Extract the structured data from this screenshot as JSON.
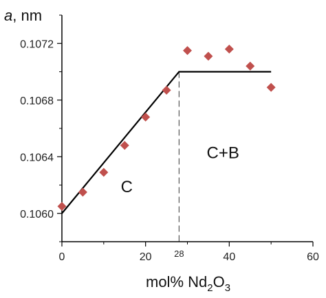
{
  "chart_data": {
    "type": "scatter",
    "title": "",
    "ylabel_var": "a",
    "ylabel_unit": ", nm",
    "xlabel_parts": [
      "mol% Nd",
      "2",
      "O",
      "3"
    ],
    "xlim": [
      0,
      60
    ],
    "ylim": [
      0.1058,
      0.1074
    ],
    "x_ticks": [
      0,
      20,
      40,
      60
    ],
    "x_tick_labels": [
      "0",
      "20",
      "40",
      "60"
    ],
    "y_ticks": [
      0.106,
      0.1064,
      0.1068,
      0.1072
    ],
    "y_tick_labels": [
      "0.1060",
      "0.1064",
      "0.1068",
      "0.1072"
    ],
    "grid": false,
    "marker_color": "#c0504d",
    "line_color": "#000000",
    "series": [
      {
        "x": [
          0,
          5,
          10,
          15,
          20,
          25,
          30,
          35,
          40,
          45,
          50
        ],
        "y": [
          0.10605,
          0.10615,
          0.10629,
          0.10648,
          0.10668,
          0.10687,
          0.10715,
          0.10711,
          0.10716,
          0.10704,
          0.10689
        ]
      }
    ],
    "fit_line": {
      "x": [
        0,
        28,
        50
      ],
      "y": [
        0.106,
        0.107,
        0.107
      ]
    },
    "boundary": {
      "x": 28,
      "label": "28"
    },
    "regions": [
      {
        "label": "C",
        "x": 15.5,
        "y": 0.10615
      },
      {
        "label": "C+B",
        "x": 38.5,
        "y": 0.10639
      }
    ]
  }
}
